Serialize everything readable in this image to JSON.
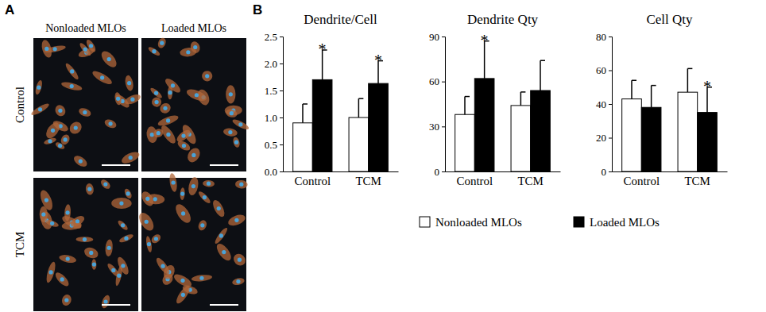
{
  "panels": [
    "A",
    "B"
  ],
  "images": {
    "columns": [
      "Nonloaded MLOs",
      "Loaded MLOs"
    ],
    "rows": [
      "Control",
      "TCM"
    ]
  },
  "chart_data": [
    {
      "type": "bar",
      "title": "Dendrite/Cell",
      "categories": [
        "Control",
        "TCM"
      ],
      "ylim": [
        0,
        2.5
      ],
      "yticks": [
        {
          "value": 0,
          "label": "0.0"
        },
        0.5,
        {
          "value": 1,
          "label": "1.0"
        },
        1.5,
        {
          "value": 2,
          "label": "2.0"
        },
        2.5
      ],
      "legend": "bottom",
      "series": [
        {
          "name": "Nonloaded MLOs",
          "color": "#ffffff",
          "values": [
            0.9,
            1.0
          ],
          "errors": [
            0.35,
            0.35
          ]
        },
        {
          "name": "Loaded MLOs",
          "color": "#000000",
          "values": [
            1.7,
            1.63
          ],
          "errors": [
            0.55,
            0.42
          ]
        }
      ],
      "annotations": [
        {
          "series": 1,
          "index": 0,
          "text": "*"
        },
        {
          "series": 1,
          "index": 1,
          "text": "*"
        }
      ]
    },
    {
      "type": "bar",
      "title": "Dendrite Qty",
      "categories": [
        "Control",
        "TCM"
      ],
      "ylim": [
        0,
        90
      ],
      "yticks": [
        0,
        30,
        60,
        90
      ],
      "series": [
        {
          "color": "#ffffff",
          "values": [
            38,
            44
          ],
          "errors": [
            12,
            9
          ]
        },
        {
          "color": "#000000",
          "values": [
            62,
            54
          ],
          "errors": [
            25,
            20
          ]
        }
      ],
      "annotations": [
        {
          "series": 1,
          "index": 0,
          "text": "*"
        }
      ]
    },
    {
      "type": "bar",
      "title": "Cell Qty",
      "categories": [
        "Control",
        "TCM"
      ],
      "ylim": [
        0,
        80
      ],
      "yticks": [
        0,
        20,
        40,
        60,
        80
      ],
      "series": [
        {
          "color": "#ffffff",
          "values": [
            43,
            47
          ],
          "errors": [
            11,
            14
          ]
        },
        {
          "color": "#000000",
          "values": [
            38,
            35
          ],
          "errors": [
            13,
            15
          ]
        }
      ],
      "annotations": [
        {
          "series": 1,
          "index": 1,
          "text": "*"
        }
      ]
    }
  ]
}
